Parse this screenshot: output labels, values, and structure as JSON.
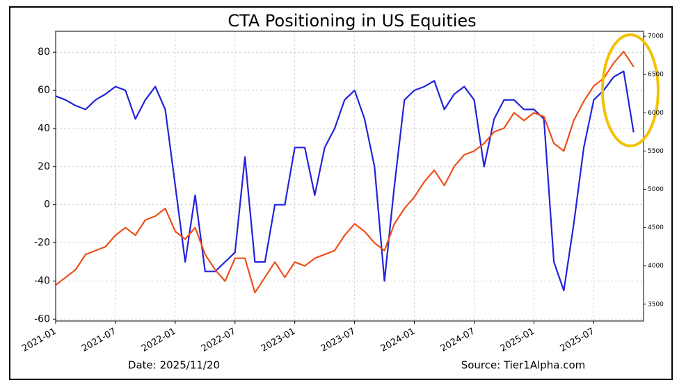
{
  "chart_data": {
    "type": "line",
    "title": "CTA Positioning in US Equities",
    "annotations": [
      "Date: 2025/11/20",
      "Source: Tier1Alpha.com"
    ],
    "x": [
      "2021-01",
      "2021-02",
      "2021-03",
      "2021-04",
      "2021-05",
      "2021-06",
      "2021-07",
      "2021-08",
      "2021-09",
      "2021-10",
      "2021-11",
      "2021-12",
      "2022-01",
      "2022-02",
      "2022-03",
      "2022-04",
      "2022-05",
      "2022-06",
      "2022-07",
      "2022-08",
      "2022-09",
      "2022-10",
      "2022-11",
      "2022-12",
      "2023-01",
      "2023-02",
      "2023-03",
      "2023-04",
      "2023-05",
      "2023-06",
      "2023-07",
      "2023-08",
      "2023-09",
      "2023-10",
      "2023-11",
      "2023-12",
      "2024-01",
      "2024-02",
      "2024-03",
      "2024-04",
      "2024-05",
      "2024-06",
      "2024-07",
      "2024-08",
      "2024-09",
      "2024-10",
      "2024-11",
      "2024-12",
      "2025-01",
      "2025-02",
      "2025-03",
      "2025-04",
      "2025-05",
      "2025-06",
      "2025-07",
      "2025-08",
      "2025-09",
      "2025-10",
      "2025-11"
    ],
    "series": [
      {
        "color": "#2222dd",
        "axis": "y",
        "values": [
          57,
          55,
          52,
          50,
          55,
          58,
          62,
          60,
          45,
          55,
          62,
          50,
          10,
          -30,
          5,
          -35,
          -35,
          -30,
          -25,
          25,
          -30,
          -30,
          0,
          0,
          30,
          30,
          5,
          30,
          40,
          55,
          60,
          45,
          20,
          -40,
          10,
          55,
          60,
          62,
          65,
          50,
          58,
          62,
          55,
          20,
          45,
          55,
          55,
          50,
          50,
          45,
          -30,
          -45,
          -10,
          30,
          55,
          60,
          67,
          70,
          38
        ]
      },
      {
        "color": "#ee4f1a",
        "axis": "y2",
        "values": [
          3750,
          3850,
          3950,
          4150,
          4200,
          4250,
          4400,
          4500,
          4400,
          4600,
          4650,
          4750,
          4450,
          4350,
          4500,
          4150,
          3950,
          3800,
          4100,
          4100,
          3650,
          3850,
          4050,
          3850,
          4050,
          4000,
          4100,
          4150,
          4200,
          4400,
          4550,
          4450,
          4300,
          4200,
          4550,
          4750,
          4900,
          5100,
          5250,
          5050,
          5300,
          5450,
          5500,
          5600,
          5750,
          5800,
          6000,
          5900,
          6000,
          5950,
          5600,
          5500,
          5900,
          6150,
          6350,
          6450,
          6650,
          6800,
          6600
        ]
      }
    ],
    "xlim": [
      "2021-01",
      "2025-12"
    ],
    "xticks": [
      "2021-01",
      "2021-07",
      "2022-01",
      "2022-07",
      "2023-01",
      "2023-07",
      "2024-01",
      "2024-07",
      "2025-01",
      "2025-07"
    ],
    "ylim": [
      -61,
      91
    ],
    "yticks": [
      -60,
      -40,
      -20,
      0,
      20,
      40,
      60,
      80
    ],
    "y2lim": [
      3280,
      7065
    ],
    "y2ticks": [
      3500,
      4000,
      4500,
      5000,
      5500,
      6000,
      6500,
      7000
    ],
    "grid": true
  }
}
